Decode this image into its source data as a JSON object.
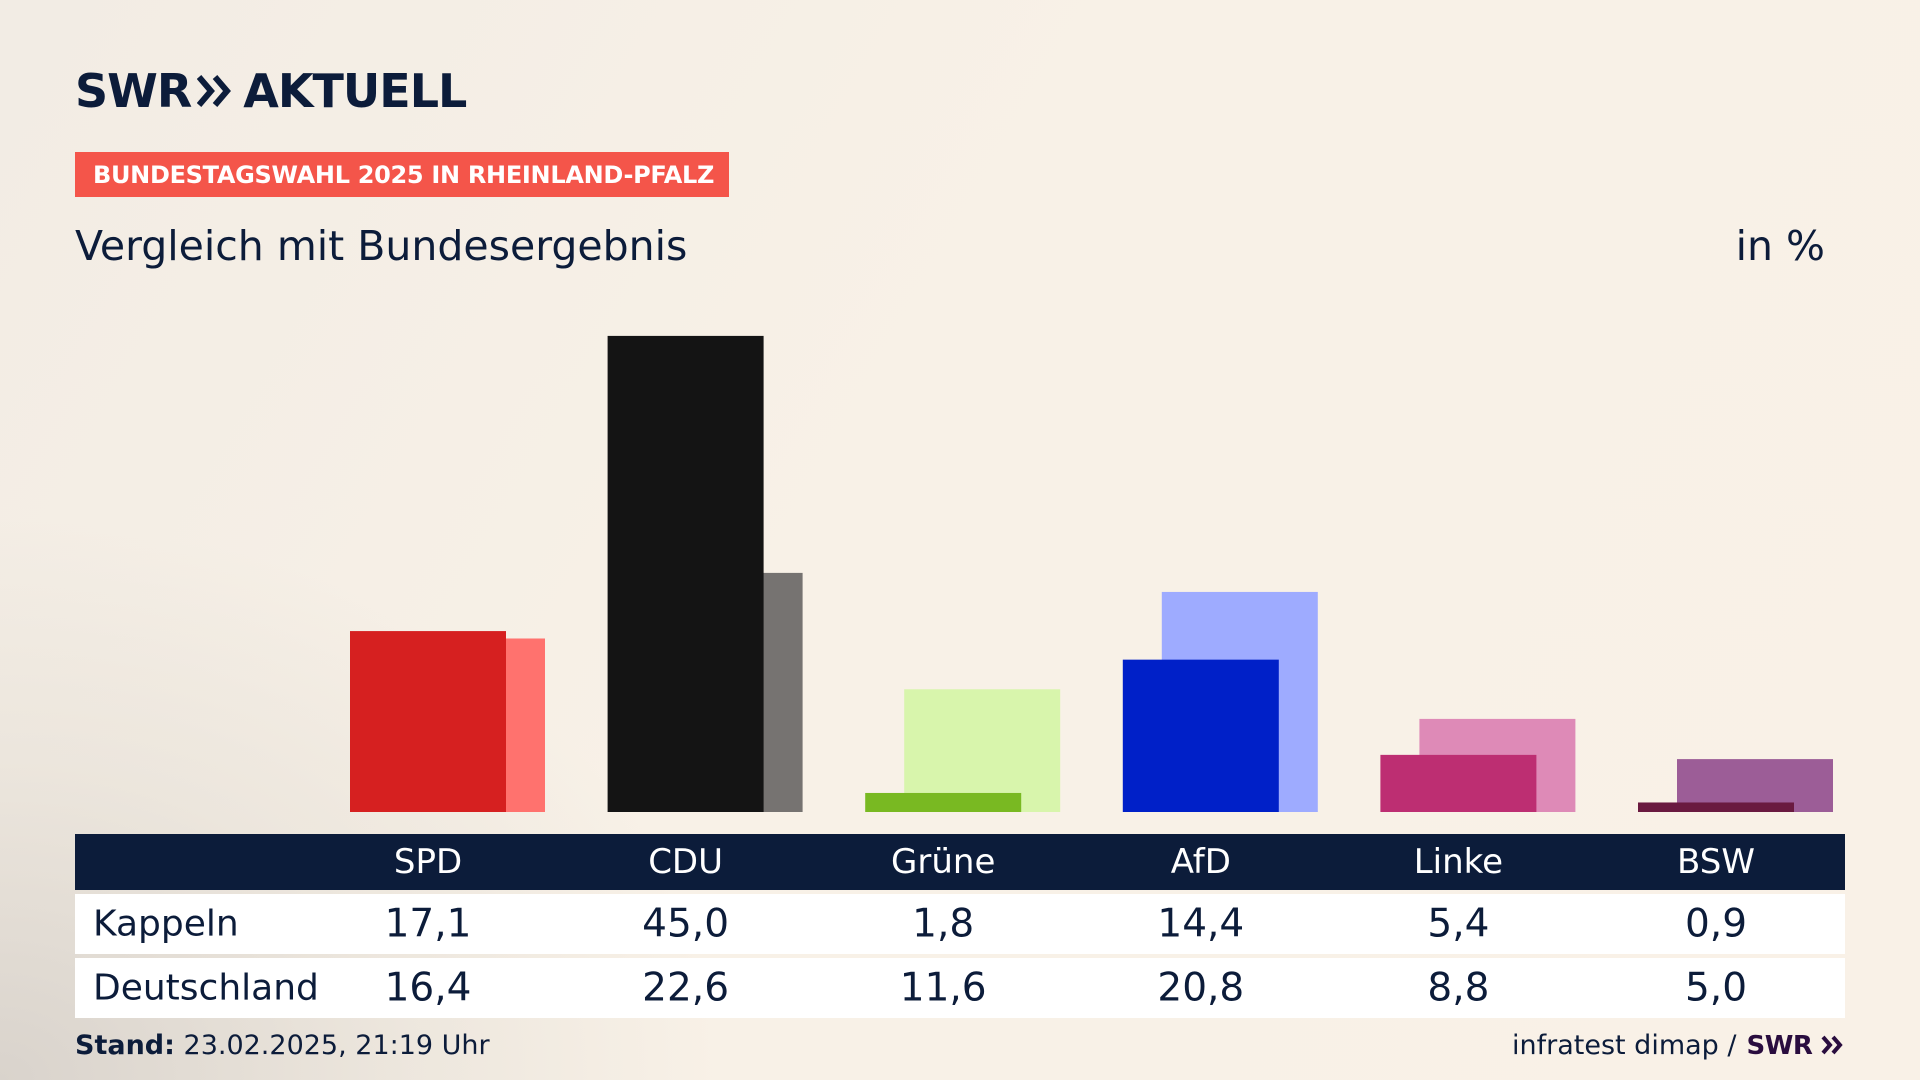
{
  "brand": {
    "logo_swr": "SWR",
    "logo_aktuell": "AKTUELL"
  },
  "tag": "BUNDESTAGSWAHL 2025 IN RHEINLAND-PFALZ",
  "subtitle": "Vergleich mit Bundesergebnis",
  "unit": "in %",
  "chart_data": {
    "type": "bar",
    "title": "",
    "ylabel": "",
    "xlabel": "",
    "categories": [
      "SPD",
      "CDU",
      "Grüne",
      "AfD",
      "Linke",
      "BSW"
    ],
    "series": [
      {
        "name": "Kappeln",
        "values": [
          17.1,
          45.0,
          1.8,
          14.4,
          5.4,
          0.9
        ],
        "colors": [
          "#d62020",
          "#141414",
          "#79b922",
          "#0020c8",
          "#bd2e72",
          "#6a1a40"
        ]
      },
      {
        "name": "Deutschland",
        "values": [
          16.4,
          22.6,
          11.6,
          20.8,
          8.8,
          5.0
        ],
        "colors": [
          "#ff726e",
          "#767371",
          "#d8f5ac",
          "#9eabff",
          "#de8ab7",
          "#9c5d97"
        ]
      }
    ],
    "display_values": [
      [
        "17,1",
        "45,0",
        "1,8",
        "14,4",
        "5,4",
        "0,9"
      ],
      [
        "16,4",
        "22,6",
        "11,6",
        "20,8",
        "8,8",
        "5,0"
      ]
    ],
    "ylim": [
      0,
      45
    ],
    "grid": false
  },
  "table": {
    "headers": [
      "SPD",
      "CDU",
      "Grüne",
      "AfD",
      "Linke",
      "BSW"
    ],
    "rows": [
      {
        "label": "Kappeln",
        "values": [
          "17,1",
          "45,0",
          "1,8",
          "14,4",
          "5,4",
          "0,9"
        ]
      },
      {
        "label": "Deutschland",
        "values": [
          "16,4",
          "22,6",
          "11,6",
          "20,8",
          "8,8",
          "5,0"
        ]
      }
    ]
  },
  "footer": {
    "stand_label": "Stand:",
    "stand_value": "23.02.2025, 21:19 Uhr",
    "source": "infratest dimap /",
    "source_logo": "SWR"
  }
}
